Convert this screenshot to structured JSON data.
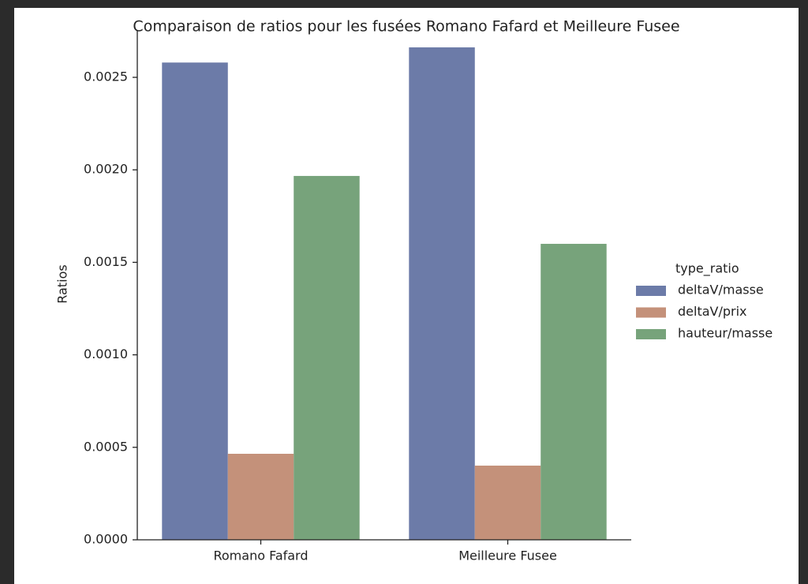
{
  "chart_data": {
    "type": "bar",
    "title": "Comparaison de ratios pour les fusées Romano Fafard et Meilleure Fusee",
    "y_label": "Ratios",
    "legend_title": "type_ratio",
    "legend_position": "right",
    "categories": [
      "Romano Fafard",
      "Meilleure Fusee"
    ],
    "series": [
      {
        "name": "deltaV/masse",
        "color": "#6c7ba8",
        "values": [
          0.00258,
          0.002662
        ]
      },
      {
        "name": "deltaV/prix",
        "color": "#c4917a",
        "values": [
          0.000465,
          0.000401
        ]
      },
      {
        "name": "hauteur/masse",
        "color": "#77a37b",
        "values": [
          0.001967,
          0.0016
        ]
      }
    ],
    "ylim": [
      0,
      0.002756
    ],
    "yticks": [
      {
        "value": 0,
        "label": "0.0000"
      },
      {
        "value": 0.0005,
        "label": "0.0005"
      },
      {
        "value": 0.001,
        "label": "0.0010"
      },
      {
        "value": 0.0015,
        "label": "0.0015"
      },
      {
        "value": 0.002,
        "label": "0.0020"
      },
      {
        "value": 0.0025,
        "label": "0.0025"
      }
    ],
    "grid": false
  }
}
